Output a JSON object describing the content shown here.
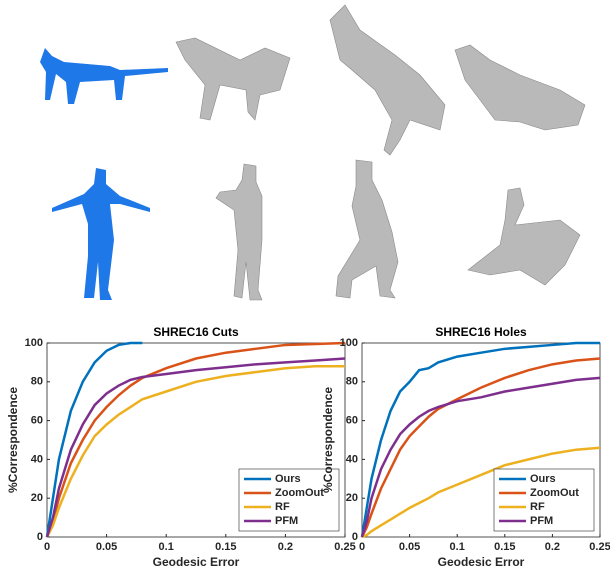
{
  "chart_data": [
    {
      "type": "line",
      "title": "SHREC16 Cuts",
      "x_label": "Geodesic Error",
      "y_label": "%Correspondence",
      "x": [
        0,
        0.005,
        0.01,
        0.02,
        0.03,
        0.04,
        0.05,
        0.06,
        0.07,
        0.08,
        0.1,
        0.125,
        0.15,
        0.175,
        0.2,
        0.225,
        0.25
      ],
      "series": [
        {
          "name": "Ours",
          "color": "#0072bd",
          "values": [
            0,
            20,
            40,
            65,
            80,
            90,
            96,
            99,
            100,
            100,
            null,
            null,
            null,
            null,
            null,
            null,
            null
          ]
        },
        {
          "name": "ZoomOut",
          "color": "#d95319",
          "values": [
            0,
            8,
            20,
            38,
            50,
            60,
            67,
            73,
            78,
            82,
            87,
            92,
            95,
            97,
            99,
            99.5,
            100
          ]
        },
        {
          "name": "RF",
          "color": "#edb120",
          "values": [
            0,
            6,
            15,
            30,
            42,
            52,
            58,
            63,
            67,
            71,
            75,
            80,
            83,
            85,
            87,
            88,
            88
          ]
        },
        {
          "name": "PFM",
          "color": "#7e2f8e",
          "values": [
            0,
            10,
            25,
            45,
            58,
            68,
            74,
            78,
            81,
            82.5,
            84,
            86,
            87.5,
            89,
            90,
            91,
            92
          ]
        }
      ],
      "xlim": [
        0,
        0.25
      ],
      "xticks": [
        0,
        0.05,
        0.1,
        0.15,
        0.2,
        0.25
      ],
      "ylim": [
        0,
        100
      ],
      "yticks": [
        0,
        20,
        40,
        60,
        80,
        100
      ],
      "legend": "lower right"
    },
    {
      "type": "line",
      "title": "SHREC16 Holes",
      "x_label": "Geodesic Error",
      "y_label": "%Correspondence",
      "x": [
        0,
        0.005,
        0.01,
        0.02,
        0.03,
        0.04,
        0.05,
        0.06,
        0.07,
        0.08,
        0.1,
        0.125,
        0.15,
        0.175,
        0.2,
        0.225,
        0.25
      ],
      "series": [
        {
          "name": "Ours",
          "color": "#0072bd",
          "values": [
            0,
            15,
            30,
            50,
            65,
            75,
            80,
            86,
            87,
            90,
            93,
            95,
            97,
            98,
            99,
            100,
            100
          ]
        },
        {
          "name": "ZoomOut",
          "color": "#d95319",
          "values": [
            0,
            5,
            12,
            25,
            35,
            45,
            52,
            57,
            62,
            66,
            71,
            77,
            82,
            86,
            89,
            91,
            92
          ]
        },
        {
          "name": "RF",
          "color": "#edb120",
          "values": [
            0,
            1,
            3,
            6,
            9,
            12,
            15,
            17.5,
            20,
            23,
            27,
            32,
            37,
            40,
            43,
            45,
            46
          ]
        },
        {
          "name": "PFM",
          "color": "#7e2f8e",
          "values": [
            0,
            8,
            20,
            35,
            45,
            53,
            58,
            62,
            65,
            67,
            70,
            72,
            75,
            77,
            79,
            81,
            82
          ]
        }
      ],
      "xlim": [
        0,
        0.25
      ],
      "xticks": [
        0,
        0.05,
        0.1,
        0.15,
        0.2,
        0.25
      ],
      "ylim": [
        0,
        100
      ],
      "yticks": [
        0,
        20,
        40,
        60,
        80,
        100
      ],
      "legend": "lower right"
    }
  ]
}
